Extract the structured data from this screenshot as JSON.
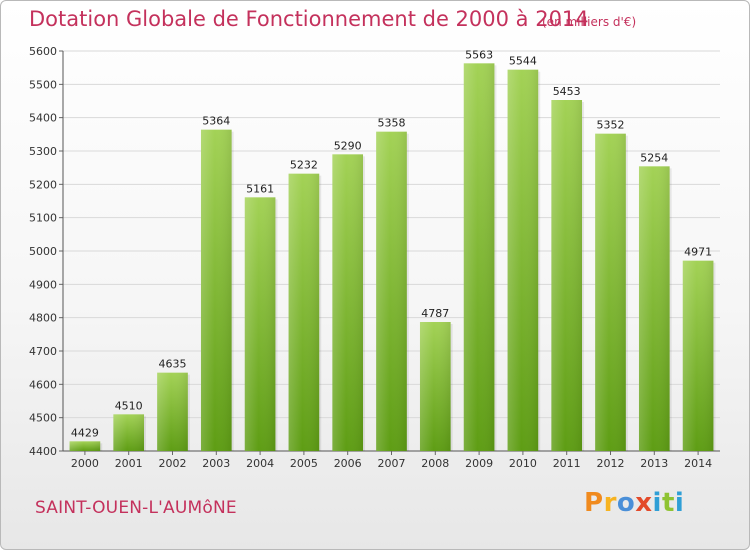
{
  "header": {
    "title": "Dotation Globale de Fonctionnement de 2000 à 2014",
    "unit": "(en milliers d'€)"
  },
  "footer": {
    "commune": "SAINT-OUEN-L'AUMôNE",
    "logo_letters": [
      "P",
      "r",
      "o",
      "x",
      "i",
      "t",
      "i"
    ]
  },
  "colors": {
    "accent": "#c4315c",
    "bar_top": "#a3d256",
    "bar_bottom": "#5e9d14",
    "grid": "#d9d9d9"
  },
  "chart_data": {
    "type": "bar",
    "title": "Dotation Globale de Fonctionnement de 2000 à 2014",
    "xlabel": "",
    "ylabel": "",
    "ylim": [
      4400,
      5600
    ],
    "yticks": [
      4400,
      4500,
      4600,
      4700,
      4800,
      4900,
      5000,
      5100,
      5200,
      5300,
      5400,
      5500,
      5600
    ],
    "grid": true,
    "categories": [
      "2000",
      "2001",
      "2002",
      "2003",
      "2004",
      "2005",
      "2006",
      "2007",
      "2008",
      "2009",
      "2010",
      "2011",
      "2012",
      "2013",
      "2014"
    ],
    "values": [
      4429,
      4510,
      4635,
      5364,
      5161,
      5232,
      5290,
      5358,
      4787,
      5563,
      5544,
      5453,
      5352,
      5254,
      4971
    ]
  }
}
